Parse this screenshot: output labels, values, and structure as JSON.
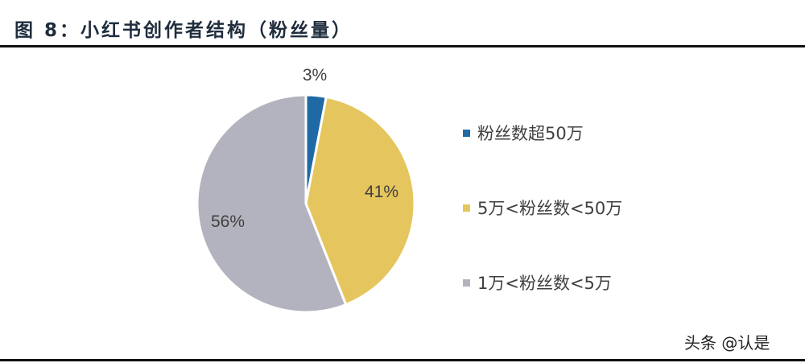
{
  "title": "图 8：小红书创作者结构（粉丝量）",
  "watermark": "头条 @认是",
  "chart_data": {
    "type": "pie",
    "title": "图 8：小红书创作者结构（粉丝量）",
    "categories": [
      "粉丝数超50万",
      "5万<粉丝数<50万",
      "1万<粉丝数<5万"
    ],
    "values": [
      3,
      41,
      56
    ],
    "labels": [
      "3%",
      "41%",
      "56%"
    ],
    "colors": [
      "#1f6aa5",
      "#e5c55e",
      "#b3b3bf"
    ],
    "legend_position": "right",
    "start_angle": "12 o'clock, clockwise"
  },
  "legend": [
    {
      "label": "粉丝数超50万",
      "color": "#1f6aa5"
    },
    {
      "label": "5万<粉丝数<50万",
      "color": "#e5c55e"
    },
    {
      "label": "1万<粉丝数<5万",
      "color": "#b3b3bf"
    }
  ]
}
